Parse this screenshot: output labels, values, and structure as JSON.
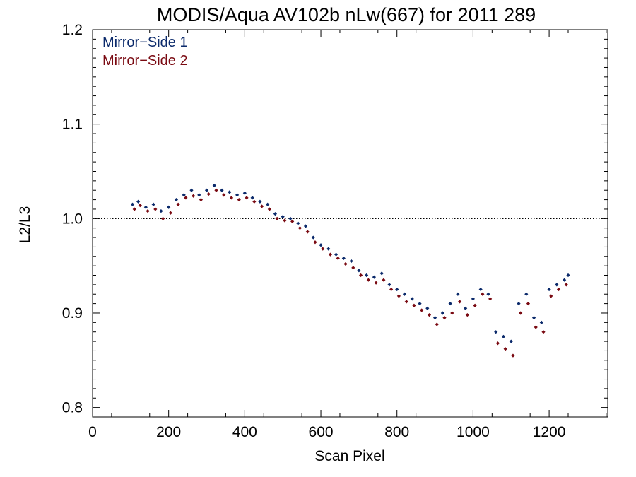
{
  "chart_data": {
    "type": "scatter",
    "title": "MODIS/Aqua AV102b nLw(667) for 2011 289",
    "xlabel": "Scan Pixel",
    "ylabel": "L2/L3",
    "xlim": [
      0,
      1354
    ],
    "ylim": [
      0.79,
      1.2
    ],
    "x_ticks": [
      0,
      200,
      400,
      600,
      800,
      1000,
      1200
    ],
    "x_tick_labels": [
      "0",
      "200",
      "400",
      "600",
      "800",
      "1000",
      "1200"
    ],
    "y_ticks": [
      0.8,
      0.9,
      1.0,
      1.1,
      1.2
    ],
    "y_tick_labels": [
      "0.8",
      "0.9",
      "1.0",
      "1.1",
      "1.2"
    ],
    "reference_line": {
      "y": 1.0,
      "style": "dotted"
    },
    "legend_placement": "top-left",
    "series": [
      {
        "name": "Mirror−Side 1",
        "color": "#0b2a6b",
        "x": [
          105,
          120,
          140,
          160,
          180,
          200,
          220,
          240,
          260,
          280,
          300,
          320,
          340,
          360,
          380,
          400,
          420,
          440,
          460,
          480,
          500,
          520,
          540,
          560,
          580,
          600,
          620,
          640,
          660,
          680,
          700,
          720,
          740,
          760,
          780,
          800,
          820,
          840,
          860,
          880,
          900,
          920,
          940,
          960,
          980,
          1000,
          1020,
          1040,
          1060,
          1080,
          1100,
          1120,
          1140,
          1160,
          1180,
          1200,
          1220,
          1240,
          1250
        ],
        "y": [
          1.015,
          1.018,
          1.012,
          1.015,
          1.008,
          1.012,
          1.02,
          1.025,
          1.03,
          1.025,
          1.03,
          1.035,
          1.03,
          1.028,
          1.025,
          1.027,
          1.022,
          1.018,
          1.015,
          1.005,
          1.002,
          1.0,
          0.995,
          0.992,
          0.98,
          0.972,
          0.968,
          0.962,
          0.958,
          0.955,
          0.945,
          0.94,
          0.938,
          0.942,
          0.93,
          0.925,
          0.92,
          0.915,
          0.91,
          0.905,
          0.895,
          0.9,
          0.91,
          0.92,
          0.905,
          0.915,
          0.925,
          0.92,
          0.88,
          0.875,
          0.87,
          0.91,
          0.92,
          0.895,
          0.89,
          0.925,
          0.93,
          0.935,
          0.94
        ]
      },
      {
        "name": "Mirror−Side 2",
        "color": "#7a0a12",
        "x": [
          110,
          125,
          145,
          165,
          185,
          205,
          225,
          245,
          265,
          285,
          305,
          325,
          345,
          365,
          385,
          405,
          425,
          445,
          465,
          485,
          505,
          525,
          545,
          565,
          585,
          605,
          625,
          645,
          665,
          685,
          705,
          725,
          745,
          765,
          785,
          805,
          825,
          845,
          865,
          885,
          905,
          925,
          945,
          965,
          985,
          1005,
          1025,
          1045,
          1065,
          1085,
          1105,
          1125,
          1145,
          1165,
          1185,
          1205,
          1225,
          1245
        ],
        "y": [
          1.01,
          1.014,
          1.008,
          1.01,
          1.0,
          1.006,
          1.015,
          1.022,
          1.024,
          1.02,
          1.026,
          1.03,
          1.025,
          1.022,
          1.02,
          1.022,
          1.018,
          1.013,
          1.01,
          1.0,
          0.998,
          0.997,
          0.99,
          0.986,
          0.975,
          0.968,
          0.962,
          0.958,
          0.952,
          0.948,
          0.94,
          0.935,
          0.932,
          0.935,
          0.925,
          0.918,
          0.912,
          0.908,
          0.903,
          0.898,
          0.888,
          0.895,
          0.9,
          0.912,
          0.898,
          0.908,
          0.92,
          0.915,
          0.868,
          0.862,
          0.855,
          0.9,
          0.91,
          0.885,
          0.88,
          0.918,
          0.925,
          0.93
        ]
      }
    ]
  }
}
